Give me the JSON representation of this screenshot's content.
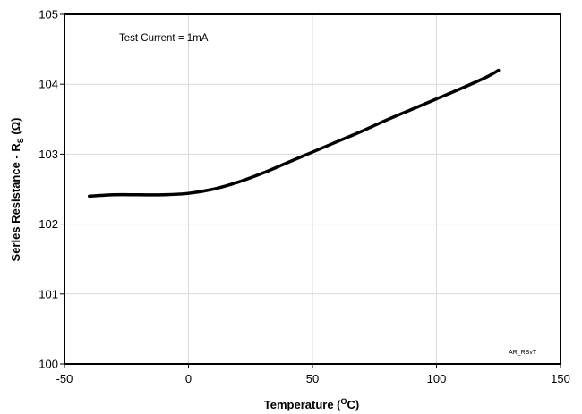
{
  "chart_data": {
    "type": "line",
    "xlabel_main": "Temperature (",
    "xlabel_sup": "O",
    "xlabel_tail": "C)",
    "ylabel_main": "Series Resistance - R",
    "ylabel_sub": "S",
    "ylabel_tail": " (Ω)",
    "xlim": [
      -50,
      150
    ],
    "ylim": [
      100,
      105
    ],
    "xticks": [
      -50,
      0,
      50,
      100,
      150
    ],
    "yticks": [
      100,
      101,
      102,
      103,
      104,
      105
    ],
    "grid": true,
    "annotation": "Test Current = 1mA",
    "figure_code": "AR_RSvT",
    "series": [
      {
        "x": [
          -40,
          -30,
          -20,
          -10,
          0,
          10,
          20,
          30,
          40,
          50,
          60,
          70,
          80,
          90,
          100,
          110,
          120,
          125
        ],
        "y": [
          102.4,
          102.42,
          102.42,
          102.42,
          102.44,
          102.5,
          102.6,
          102.73,
          102.88,
          103.03,
          103.18,
          103.33,
          103.49,
          103.64,
          103.79,
          103.94,
          104.1,
          104.2
        ]
      }
    ]
  }
}
